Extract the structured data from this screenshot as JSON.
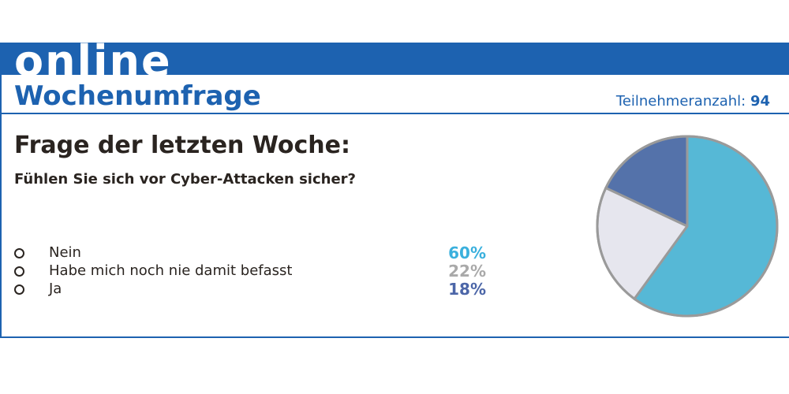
{
  "banner": {
    "word": "online"
  },
  "header": {
    "title": "Wochenumfrage",
    "participants_label": "Teilnehmeranzahl:",
    "participants_count": "94"
  },
  "question": {
    "heading": "Frage der letzten Woche:",
    "text": "Fühlen Sie sich vor Cyber-Attacken sicher?"
  },
  "colors": {
    "brand_blue": "#1d62b0",
    "text_dark": "#2a2420",
    "slice_nein": "#56b8d6",
    "slice_nie": "#e6e6ee",
    "slice_ja": "#5472aa",
    "value_nein": "#3ab0dd",
    "value_nie": "#a9a9a9",
    "value_ja": "#4c66a8",
    "pie_border": "#9a9a9a"
  },
  "chart_data": {
    "type": "pie",
    "title": "Fühlen Sie sich vor Cyber-Attacken sicher?",
    "categories": [
      "Nein",
      "Habe mich noch nie damit befasst",
      "Ja"
    ],
    "values": [
      60,
      22,
      18
    ],
    "value_labels": [
      "60%",
      "22%",
      "18%"
    ],
    "slice_colors": [
      "#56b8d6",
      "#e6e6ee",
      "#5472aa"
    ]
  }
}
